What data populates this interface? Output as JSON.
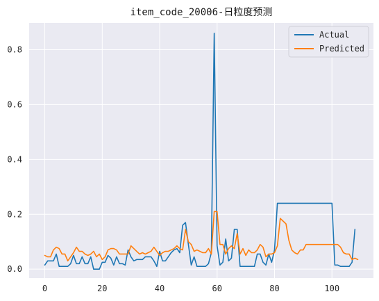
{
  "chart_data": {
    "type": "line",
    "title": "item_code_20006-日粒度预测",
    "xlabel": "",
    "ylabel": "",
    "xlim": [
      -5.45,
      114.45
    ],
    "ylim": [
      -0.0325,
      0.8975
    ],
    "xticks": [
      0,
      20,
      40,
      60,
      80,
      100
    ],
    "yticks": [
      0.0,
      0.2,
      0.4,
      0.6,
      0.8
    ],
    "ytick_labels": [
      "0.0",
      "0.2",
      "0.4",
      "0.6",
      "0.8"
    ],
    "grid": true,
    "legend": "upper right",
    "series": [
      {
        "name": "Actual",
        "color": "#1f77b4",
        "values": [
          0.015,
          0.03,
          0.03,
          0.03,
          0.055,
          0.01,
          0.01,
          0.01,
          0.01,
          0.02,
          0.05,
          0.02,
          0.02,
          0.045,
          0.02,
          0.02,
          0.045,
          0.0,
          0.0,
          0.0,
          0.025,
          0.025,
          0.05,
          0.04,
          0.015,
          0.045,
          0.02,
          0.02,
          0.015,
          0.07,
          0.045,
          0.03,
          0.035,
          0.035,
          0.035,
          0.045,
          0.045,
          0.045,
          0.03,
          0.01,
          0.065,
          0.03,
          0.03,
          0.045,
          0.06,
          0.07,
          0.075,
          0.06,
          0.16,
          0.17,
          0.09,
          0.015,
          0.045,
          0.01,
          0.01,
          0.01,
          0.01,
          0.02,
          0.06,
          0.86,
          0.085,
          0.015,
          0.025,
          0.11,
          0.03,
          0.04,
          0.145,
          0.145,
          0.01,
          0.01,
          0.01,
          0.01,
          0.01,
          0.01,
          0.055,
          0.055,
          0.025,
          0.015,
          0.055,
          0.025,
          0.07,
          0.24,
          0.24,
          0.24,
          0.24,
          0.24,
          0.24,
          0.24,
          0.24,
          0.24,
          0.24,
          0.24,
          0.24,
          0.24,
          0.24,
          0.24,
          0.24,
          0.24,
          0.24,
          0.24,
          0.24,
          0.015,
          0.015,
          0.01,
          0.01,
          0.01,
          0.01,
          0.025,
          0.145
        ]
      },
      {
        "name": "Predicted",
        "color": "#ff7f0e",
        "values": [
          0.05,
          0.045,
          0.045,
          0.07,
          0.08,
          0.075,
          0.055,
          0.055,
          0.03,
          0.045,
          0.06,
          0.08,
          0.065,
          0.065,
          0.055,
          0.05,
          0.055,
          0.065,
          0.045,
          0.055,
          0.035,
          0.045,
          0.07,
          0.075,
          0.075,
          0.07,
          0.055,
          0.055,
          0.055,
          0.055,
          0.085,
          0.075,
          0.065,
          0.055,
          0.06,
          0.055,
          0.06,
          0.065,
          0.08,
          0.065,
          0.05,
          0.06,
          0.065,
          0.065,
          0.07,
          0.075,
          0.085,
          0.075,
          0.07,
          0.145,
          0.1,
          0.09,
          0.065,
          0.07,
          0.065,
          0.06,
          0.06,
          0.075,
          0.055,
          0.21,
          0.21,
          0.09,
          0.09,
          0.055,
          0.075,
          0.085,
          0.075,
          0.13,
          0.055,
          0.075,
          0.05,
          0.07,
          0.06,
          0.06,
          0.07,
          0.09,
          0.08,
          0.045,
          0.055,
          0.055,
          0.06,
          0.085,
          0.185,
          0.175,
          0.165,
          0.105,
          0.07,
          0.06,
          0.055,
          0.07,
          0.07,
          0.09,
          0.09,
          0.09,
          0.09,
          0.09,
          0.09,
          0.09,
          0.09,
          0.09,
          0.09,
          0.09,
          0.09,
          0.08,
          0.06,
          0.055,
          0.055,
          0.035,
          0.04,
          0.035
        ]
      }
    ]
  }
}
